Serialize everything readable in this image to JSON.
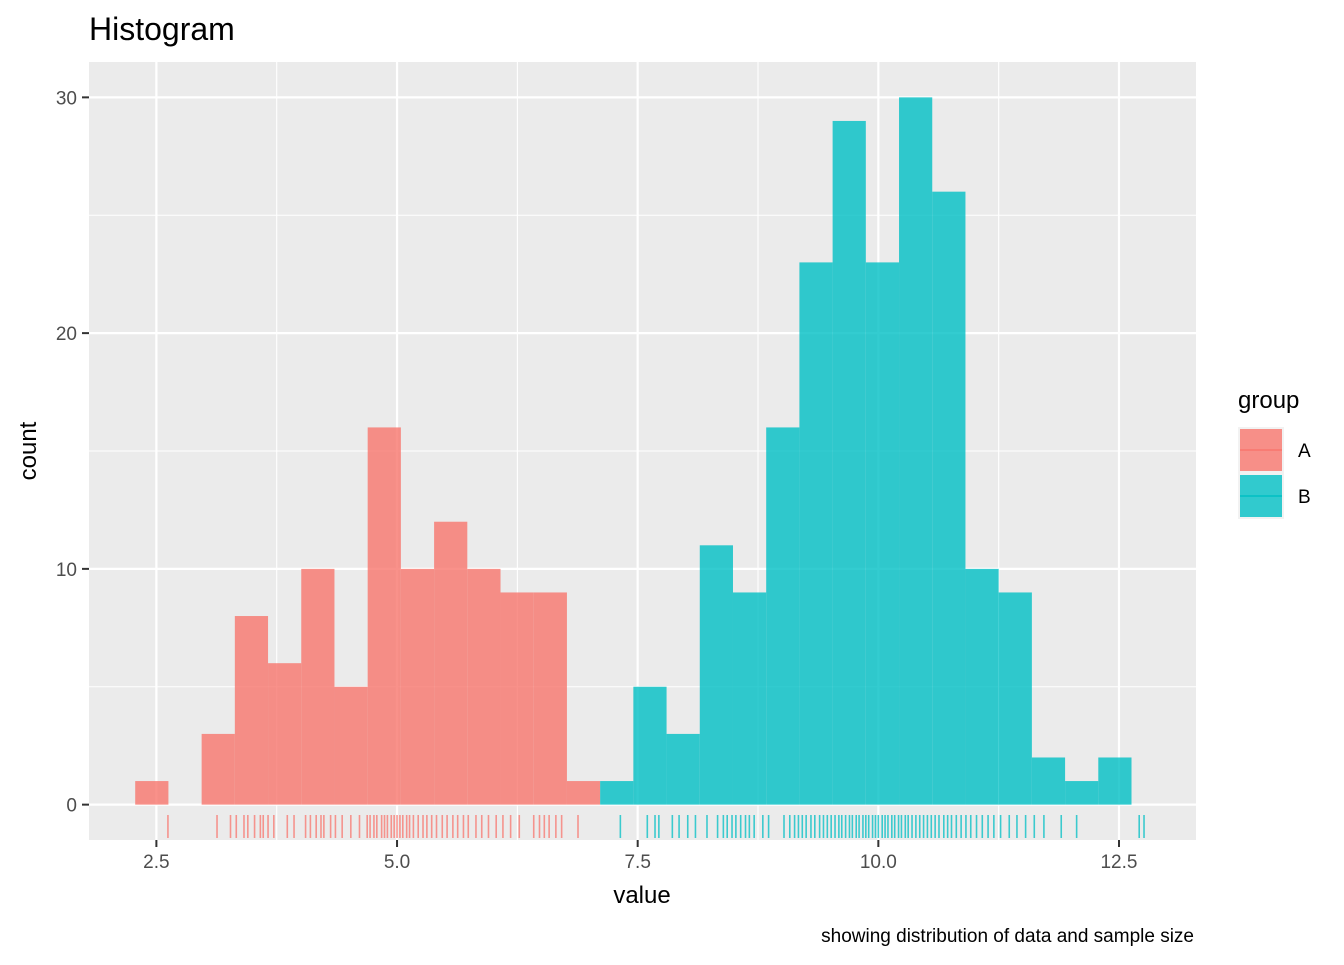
{
  "chart_data": {
    "type": "bar",
    "title": "Histogram",
    "xlabel": "value",
    "ylabel": "count",
    "caption": "showing distribution of data and sample size",
    "xlim": [
      1.8,
      13.3
    ],
    "ylim": [
      -1.5,
      31.5
    ],
    "x_ticks": [
      2.5,
      5.0,
      7.5,
      10.0,
      12.5
    ],
    "x_tick_labels": [
      "2.5",
      "5.0",
      "7.5",
      "10.0",
      "12.5"
    ],
    "y_ticks": [
      0,
      10,
      20,
      30
    ],
    "y_tick_labels": [
      "0",
      "10",
      "20",
      "30"
    ],
    "legend": {
      "title": "group",
      "placement": "right"
    },
    "bin_width": 0.345,
    "series": [
      {
        "name": "A",
        "color": "#F8766D",
        "bins": [
          {
            "start": 2.28,
            "count": 1
          },
          {
            "start": 2.625,
            "count": 0
          },
          {
            "start": 2.97,
            "count": 3
          },
          {
            "start": 3.315,
            "count": 8
          },
          {
            "start": 3.66,
            "count": 6
          },
          {
            "start": 4.005,
            "count": 10
          },
          {
            "start": 4.35,
            "count": 5
          },
          {
            "start": 4.695,
            "count": 16
          },
          {
            "start": 5.04,
            "count": 10
          },
          {
            "start": 5.385,
            "count": 12
          },
          {
            "start": 5.73,
            "count": 10
          },
          {
            "start": 6.075,
            "count": 9
          },
          {
            "start": 6.42,
            "count": 9
          },
          {
            "start": 6.765,
            "count": 1
          }
        ],
        "rug": [
          2.62,
          3.13,
          3.27,
          3.33,
          3.41,
          3.45,
          3.52,
          3.58,
          3.61,
          3.66,
          3.72,
          3.86,
          3.93,
          4.05,
          4.1,
          4.16,
          4.21,
          4.24,
          4.31,
          4.36,
          4.43,
          4.52,
          4.61,
          4.69,
          4.72,
          4.76,
          4.79,
          4.84,
          4.87,
          4.9,
          4.94,
          4.97,
          5.0,
          5.03,
          5.06,
          5.1,
          5.13,
          5.17,
          5.22,
          5.27,
          5.31,
          5.36,
          5.41,
          5.47,
          5.52,
          5.58,
          5.63,
          5.69,
          5.74,
          5.82,
          5.88,
          5.95,
          6.03,
          6.1,
          6.18,
          6.27,
          6.42,
          6.48,
          6.53,
          6.58,
          6.65,
          6.71,
          6.88
        ]
      },
      {
        "name": "B",
        "color": "#00BFC4",
        "bins": [
          {
            "start": 7.11,
            "count": 1
          },
          {
            "start": 7.455,
            "count": 5
          },
          {
            "start": 7.8,
            "count": 3
          },
          {
            "start": 8.145,
            "count": 11
          },
          {
            "start": 8.49,
            "count": 9
          },
          {
            "start": 8.835,
            "count": 16
          },
          {
            "start": 9.18,
            "count": 23
          },
          {
            "start": 9.525,
            "count": 29
          },
          {
            "start": 9.87,
            "count": 23
          },
          {
            "start": 10.215,
            "count": 30
          },
          {
            "start": 10.56,
            "count": 26
          },
          {
            "start": 10.905,
            "count": 10
          },
          {
            "start": 11.25,
            "count": 9
          },
          {
            "start": 11.595,
            "count": 2
          },
          {
            "start": 11.94,
            "count": 1
          },
          {
            "start": 12.285,
            "count": 2
          }
        ],
        "rug": [
          7.32,
          7.6,
          7.68,
          7.72,
          7.86,
          7.93,
          8.02,
          8.1,
          8.22,
          8.33,
          8.39,
          8.43,
          8.48,
          8.52,
          8.57,
          8.62,
          8.66,
          8.71,
          8.8,
          8.86,
          9.02,
          9.08,
          9.13,
          9.17,
          9.21,
          9.25,
          9.3,
          9.34,
          9.39,
          9.43,
          9.47,
          9.51,
          9.55,
          9.59,
          9.62,
          9.66,
          9.7,
          9.73,
          9.77,
          9.8,
          9.84,
          9.87,
          9.9,
          9.94,
          9.97,
          10.0,
          10.04,
          10.07,
          10.1,
          10.14,
          10.17,
          10.21,
          10.24,
          10.28,
          10.31,
          10.35,
          10.39,
          10.43,
          10.47,
          10.51,
          10.55,
          10.59,
          10.63,
          10.68,
          10.72,
          10.76,
          10.81,
          10.86,
          10.91,
          10.96,
          11.02,
          11.08,
          11.14,
          11.2,
          11.27,
          11.36,
          11.44,
          11.53,
          11.62,
          11.72,
          11.9,
          12.06,
          12.71,
          12.76
        ]
      }
    ]
  }
}
